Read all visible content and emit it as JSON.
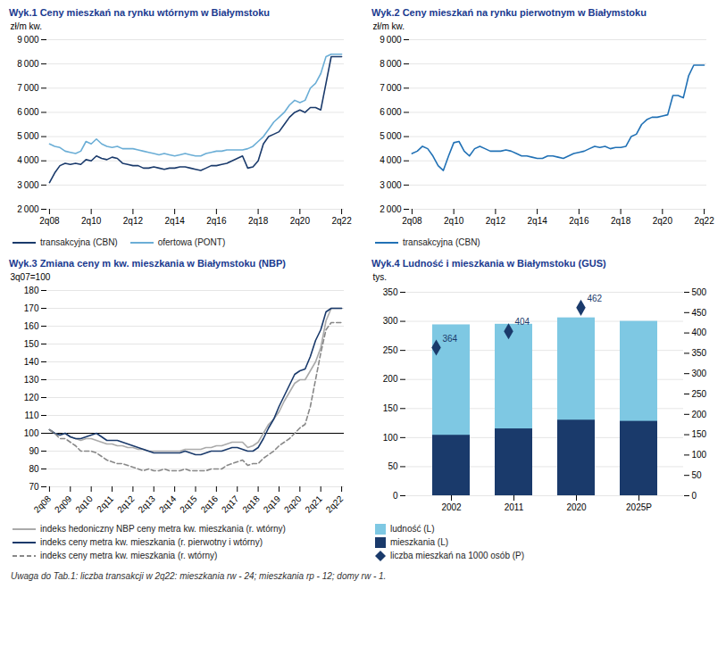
{
  "chart_data": [
    {
      "type": "line",
      "title": "Wyk.1 Ceny mieszkań na rynku wtórnym w Białymstoku",
      "ylabel": "zł/m kw.",
      "categories": [
        "2q08",
        null,
        null,
        null,
        null,
        null,
        null,
        null,
        "2q10",
        null,
        null,
        null,
        null,
        null,
        null,
        null,
        "2q12",
        null,
        null,
        null,
        null,
        null,
        null,
        null,
        "2q14",
        null,
        null,
        null,
        null,
        null,
        null,
        null,
        "2q16",
        null,
        null,
        null,
        null,
        null,
        null,
        null,
        "2q18",
        null,
        null,
        null,
        null,
        null,
        null,
        null,
        "2q20",
        null,
        null,
        null,
        null,
        null,
        null,
        null,
        "2q22"
      ],
      "series": [
        {
          "name": "transakcyjna (CBN)",
          "color": "#1a3a6b",
          "line_style": "solid",
          "values": [
            3100,
            3500,
            3800,
            3900,
            3850,
            3900,
            3850,
            4050,
            4000,
            4200,
            4100,
            4050,
            4150,
            4100,
            3900,
            3850,
            3800,
            3800,
            3700,
            3700,
            3750,
            3700,
            3650,
            3700,
            3700,
            3750,
            3750,
            3700,
            3650,
            3600,
            3700,
            3800,
            3800,
            3850,
            3900,
            4000,
            4100,
            4200,
            3700,
            3750,
            4000,
            4700,
            5000,
            5100,
            5200,
            5500,
            5800,
            6000,
            6100,
            6000,
            6200,
            6200,
            6100,
            7200,
            8300,
            8300,
            8300
          ]
        },
        {
          "name": "ofertowa (PONT)",
          "color": "#6baed6",
          "line_style": "solid",
          "values": [
            4700,
            4600,
            4550,
            4400,
            4350,
            4300,
            4400,
            4800,
            4700,
            4900,
            4700,
            4600,
            4550,
            4600,
            4500,
            4500,
            4500,
            4450,
            4400,
            4350,
            4300,
            4250,
            4300,
            4250,
            4200,
            4250,
            4300,
            4250,
            4200,
            4200,
            4300,
            4350,
            4400,
            4400,
            4450,
            4450,
            4450,
            4450,
            4500,
            4600,
            4800,
            5000,
            5300,
            5600,
            5800,
            6000,
            6300,
            6500,
            6400,
            6500,
            7000,
            7200,
            7600,
            8300,
            8400,
            8400,
            8400
          ]
        }
      ],
      "ylim": [
        2000,
        9000
      ],
      "yticks": [
        {
          "value": 2000,
          "label": "2 000"
        },
        {
          "value": 3000,
          "label": "3 000"
        },
        {
          "value": 4000,
          "label": "4 000"
        },
        {
          "value": 5000,
          "label": "5 000"
        },
        {
          "value": 6000,
          "label": "6 000"
        },
        {
          "value": 7000,
          "label": "7 000"
        },
        {
          "value": 8000,
          "label": "8 000"
        },
        {
          "value": 9000,
          "label": "9 000"
        }
      ],
      "grid": true
    },
    {
      "type": "line",
      "title": "Wyk.2 Ceny mieszkań na rynku pierwotnym w Białymstoku",
      "ylabel": "zł/m kw.",
      "categories": [
        "2q08",
        null,
        null,
        null,
        null,
        null,
        null,
        null,
        "2q10",
        null,
        null,
        null,
        null,
        null,
        null,
        null,
        "2q12",
        null,
        null,
        null,
        null,
        null,
        null,
        null,
        "2q14",
        null,
        null,
        null,
        null,
        null,
        null,
        null,
        "2q16",
        null,
        null,
        null,
        null,
        null,
        null,
        null,
        "2q18",
        null,
        null,
        null,
        null,
        null,
        null,
        null,
        "2q20",
        null,
        null,
        null,
        null,
        null,
        null,
        null,
        "2q22"
      ],
      "series": [
        {
          "name": "transakcyjna (CBN)",
          "color": "#2171b5",
          "line_style": "solid",
          "values": [
            4300,
            4400,
            4600,
            4500,
            4200,
            3800,
            3600,
            4200,
            4750,
            4800,
            4400,
            4200,
            4500,
            4600,
            4500,
            4400,
            4400,
            4400,
            4450,
            4400,
            4300,
            4200,
            4200,
            4150,
            4100,
            4100,
            4200,
            4200,
            4150,
            4100,
            4200,
            4300,
            4350,
            4400,
            4500,
            4600,
            4550,
            4600,
            4500,
            4550,
            4550,
            4600,
            5000,
            5100,
            5500,
            5700,
            5800,
            5800,
            5850,
            5900,
            6700,
            6700,
            6600,
            7500,
            7950,
            7950,
            7950
          ]
        }
      ],
      "ylim": [
        2000,
        9000
      ],
      "yticks": [
        {
          "value": 2000,
          "label": "2 000"
        },
        {
          "value": 3000,
          "label": "3 000"
        },
        {
          "value": 4000,
          "label": "4 000"
        },
        {
          "value": 5000,
          "label": "5 000"
        },
        {
          "value": 6000,
          "label": "6 000"
        },
        {
          "value": 7000,
          "label": "7 000"
        },
        {
          "value": 8000,
          "label": "8 000"
        },
        {
          "value": 9000,
          "label": "9 000"
        }
      ],
      "grid": true
    },
    {
      "type": "line",
      "title": "Wyk.3 Zmiana ceny m kw. mieszkania w Białymstoku (NBP)",
      "ylabel": "3q07=100",
      "categories": [
        "2q08",
        null,
        null,
        null,
        "2q09",
        null,
        null,
        null,
        "2q10",
        null,
        null,
        null,
        "2q11",
        null,
        null,
        null,
        "2q12",
        null,
        null,
        null,
        "2q13",
        null,
        null,
        null,
        "2q14",
        null,
        null,
        null,
        "2q15",
        null,
        null,
        null,
        "2q16",
        null,
        null,
        null,
        "2q17",
        null,
        null,
        null,
        "2q18",
        null,
        null,
        null,
        "2q19",
        null,
        null,
        null,
        "2q20",
        null,
        null,
        null,
        "2q21",
        null,
        null,
        null,
        "2q22"
      ],
      "series": [
        {
          "name": "indeks hedoniczny NBP ceny metra kw. mieszkania (r. wtórny)",
          "color": "#aaaaaa",
          "line_style": "solid",
          "values": [
            102,
            100,
            99,
            100,
            98,
            97,
            96,
            97,
            97,
            96,
            95,
            94,
            94,
            93,
            93,
            92,
            92,
            91,
            91,
            90,
            90,
            90,
            90,
            90,
            90,
            90,
            91,
            91,
            91,
            91,
            92,
            92,
            93,
            93,
            94,
            95,
            95,
            95,
            92,
            93,
            95,
            100,
            105,
            108,
            112,
            118,
            123,
            128,
            130,
            130,
            135,
            140,
            148,
            163,
            170,
            170,
            170
          ]
        },
        {
          "name": "indeks ceny metra kw. mieszkania (r. pierwotny i wtórny)",
          "color": "#1a3a6b",
          "line_style": "solid",
          "values": [
            102,
            100,
            99,
            100,
            98,
            97,
            97,
            98,
            99,
            100,
            98,
            96,
            96,
            96,
            95,
            94,
            93,
            92,
            91,
            90,
            89,
            89,
            89,
            89,
            89,
            89,
            90,
            89,
            88,
            88,
            89,
            90,
            90,
            90,
            91,
            92,
            92,
            91,
            90,
            90,
            92,
            97,
            103,
            108,
            115,
            121,
            127,
            133,
            135,
            136,
            143,
            152,
            158,
            168,
            170,
            170,
            170
          ]
        },
        {
          "name": "indeks ceny metra kw. mieszkania (r. wtórny)",
          "color": "#888888",
          "line_style": "dashed",
          "values": [
            102,
            100,
            97,
            97,
            95,
            93,
            90,
            90,
            90,
            89,
            87,
            85,
            84,
            83,
            83,
            82,
            81,
            80,
            79,
            80,
            79,
            79,
            80,
            79,
            79,
            79,
            80,
            79,
            79,
            79,
            79,
            80,
            80,
            80,
            82,
            83,
            84,
            85,
            82,
            83,
            83,
            86,
            88,
            90,
            93,
            95,
            97,
            100,
            103,
            105,
            115,
            130,
            145,
            158,
            162,
            162,
            162
          ]
        }
      ],
      "annotations": [
        {
          "type": "hline",
          "y": 100,
          "color": "black"
        }
      ],
      "ylim": [
        70,
        180
      ],
      "yticks": [
        70,
        80,
        90,
        100,
        110,
        120,
        130,
        140,
        150,
        160,
        170,
        180
      ],
      "grid": true
    },
    {
      "type": "bar",
      "title": "Wyk.4 Ludność i mieszkania w Białymstoku (GUS)",
      "ylabel": "tys.",
      "categories": [
        "2002",
        "2011",
        "2020",
        "2025P"
      ],
      "stacked": false,
      "series": [
        {
          "name": "ludność (L)",
          "color": "#7ec8e3",
          "values": [
            294,
            295,
            306,
            300
          ]
        },
        {
          "name": "mieszkania (L)",
          "color": "#1a3a6b",
          "values": [
            104,
            115,
            130,
            128
          ]
        },
        {
          "name": "liczba mieszkań na 1000 osób (P)",
          "type": "scatter",
          "marker": "diamond",
          "color": "#1a3a6b",
          "axis": "y2",
          "data_labels": true,
          "values": [
            364,
            404,
            462,
            null
          ]
        }
      ],
      "ylim": [
        0,
        350
      ],
      "yticks": [
        0,
        50,
        100,
        150,
        200,
        250,
        300,
        350
      ],
      "y2lim": [
        0,
        500
      ],
      "y2ticks": [
        0,
        50,
        100,
        150,
        200,
        250,
        300,
        350,
        400,
        450,
        500
      ],
      "grid": true
    }
  ],
  "caption": "Uwaga do Tab.1: liczba transakcji w 2q22: mieszkania rw - 24; mieszkania rp - 12; domy rw - 1."
}
